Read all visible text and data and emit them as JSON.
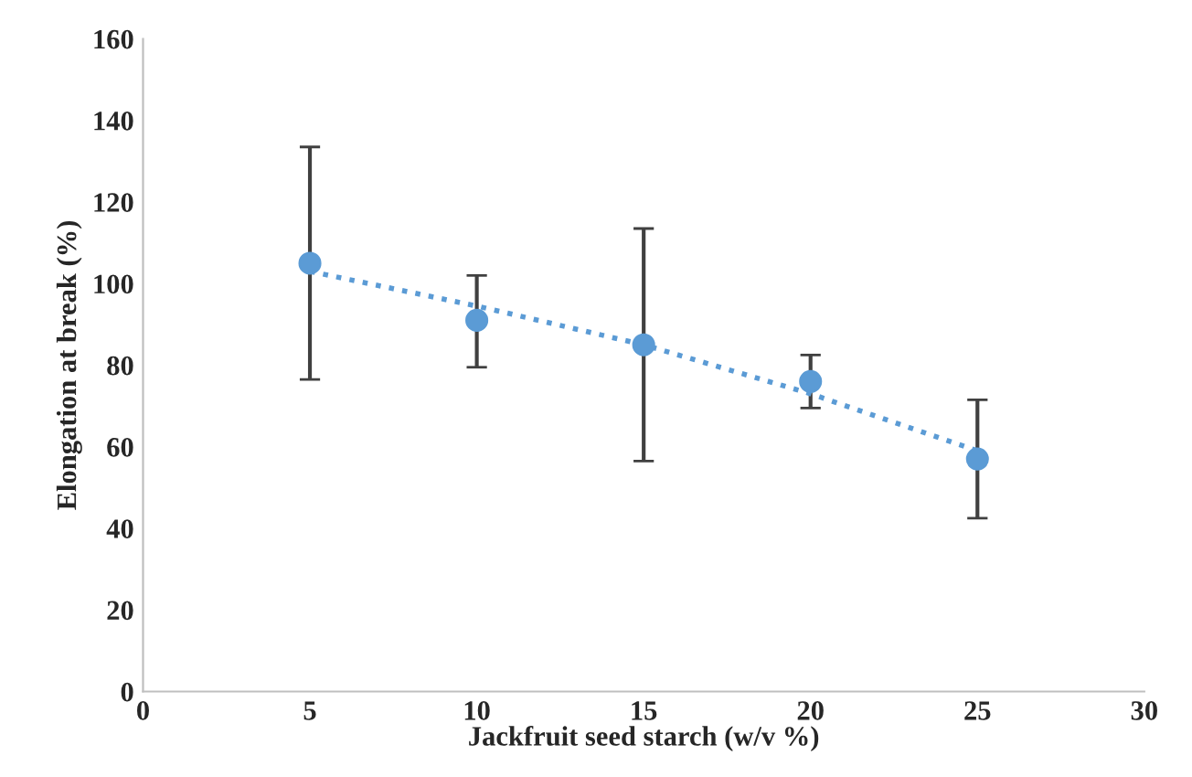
{
  "chart_data": {
    "type": "scatter",
    "xlabel": "Jackfruit seed starch (w/v %)",
    "ylabel": "Elongation at break (%)",
    "xlim": [
      0,
      30
    ],
    "xticks": [
      0,
      5,
      10,
      15,
      20,
      25,
      30
    ],
    "ylim": [
      0,
      160
    ],
    "yticks": [
      0,
      20,
      40,
      60,
      80,
      100,
      120,
      140,
      160
    ],
    "grid": false,
    "legend": false,
    "series": [
      {
        "marker": "circle",
        "color": "#5b9bd5",
        "x": [
          5,
          10,
          15,
          20,
          25
        ],
        "values": [
          105,
          91,
          85,
          76,
          57
        ],
        "errors": [
          [
            76.5,
            133.5
          ],
          [
            79.5,
            102
          ],
          [
            56.5,
            113.5
          ],
          [
            69.5,
            82.5
          ],
          [
            42.5,
            71.5
          ]
        ]
      },
      {
        "type": "line",
        "marker": "none",
        "color": "#5b9bd5",
        "line_style": "dotted",
        "x": [
          5,
          10,
          15,
          20,
          25
        ],
        "values": [
          103,
          94.5,
          85,
          73,
          59
        ]
      }
    ]
  }
}
